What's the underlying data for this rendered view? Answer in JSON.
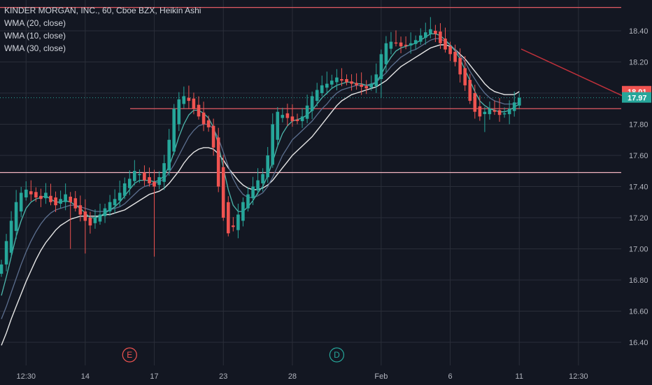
{
  "legend": {
    "symbol_line": "KINDER MORGAN, INC., 60, Cboe BZX, Heikin Ashi",
    "wma20": "WMA (20, close)",
    "wma10": "WMA (10, close)",
    "wma30": "WMA (30, close)"
  },
  "colors": {
    "background": "#131722",
    "grid": "#2a2e39",
    "up": "#26a69a",
    "down": "#ef5350",
    "wma10": "#4db6ac",
    "wma20": "#5c6f8f",
    "wma30": "#e6e6e6",
    "hline_red": "#e05a63",
    "hline_pink": "#f4b6c2",
    "trend": "#c0313b"
  },
  "chart_data": {
    "type": "candlestick",
    "title": "KINDER MORGAN, INC., 60, Cboe BZX, Heikin Ashi",
    "price_axis": {
      "min": 16.3,
      "max": 18.55,
      "ticks": [
        "18.40",
        "18.20",
        "18.00",
        "17.80",
        "17.60",
        "17.40",
        "17.20",
        "17.00",
        "16.80",
        "16.60",
        "16.40"
      ]
    },
    "time_axis": {
      "ticks": [
        {
          "label": "12:30",
          "index": 5
        },
        {
          "label": "14",
          "index": 17
        },
        {
          "label": "17",
          "index": 31
        },
        {
          "label": "23",
          "index": 45
        },
        {
          "label": "28",
          "index": 59
        },
        {
          "label": "Feb",
          "index": 77
        },
        {
          "label": "6",
          "index": 91
        },
        {
          "label": "11",
          "index": 105
        },
        {
          "label": "12:30",
          "index": 117
        }
      ],
      "total_slots": 126
    },
    "current_prices": [
      {
        "label": "18.01",
        "value": 18.01,
        "color": "#ef5350"
      },
      {
        "label": "17.97",
        "value": 17.97,
        "color": "#26a69a"
      }
    ],
    "horizontal_lines": [
      {
        "value": 18.55,
        "color": "#e05a63"
      },
      {
        "value": 17.9,
        "color": "#e05a63"
      },
      {
        "value": 17.49,
        "color": "#f4b6c2"
      }
    ],
    "events": [
      {
        "label": "E",
        "index": 26,
        "color": "#ef5350"
      },
      {
        "label": "D",
        "index": 68,
        "color": "#26a69a"
      }
    ],
    "close": [
      16.9,
      17.05,
      17.18,
      17.3,
      17.36,
      17.38,
      17.35,
      17.33,
      17.32,
      17.36,
      17.3,
      17.28,
      17.32,
      17.35,
      17.3,
      17.26,
      17.22,
      17.18,
      17.15,
      17.2,
      17.22,
      17.26,
      17.3,
      17.32,
      17.36,
      17.42,
      17.45,
      17.5,
      17.48,
      17.44,
      17.42,
      17.4,
      17.46,
      17.55,
      17.7,
      17.9,
      17.96,
      17.98,
      17.95,
      17.9,
      17.85,
      17.8,
      17.78,
      17.65,
      17.4,
      17.2,
      17.1,
      17.14,
      17.22,
      17.3,
      17.35,
      17.4,
      17.44,
      17.48,
      17.6,
      17.8,
      17.88,
      17.86,
      17.84,
      17.82,
      17.82,
      17.85,
      17.92,
      17.98,
      18.02,
      18.05,
      18.06,
      18.08,
      18.1,
      18.08,
      18.07,
      18.06,
      18.05,
      18.04,
      18.03,
      18.06,
      18.12,
      18.25,
      18.32,
      18.33,
      18.32,
      18.3,
      18.31,
      18.32,
      18.34,
      18.37,
      18.39,
      18.41,
      18.38,
      18.32,
      18.28,
      18.25,
      18.2,
      18.12,
      18.05,
      17.95,
      17.88,
      17.85,
      17.88,
      17.9,
      17.88,
      17.86,
      17.87,
      17.9,
      17.94,
      17.97
    ],
    "wma10": [
      16.7,
      16.82,
      16.95,
      17.08,
      17.18,
      17.26,
      17.3,
      17.32,
      17.33,
      17.34,
      17.32,
      17.3,
      17.3,
      17.31,
      17.3,
      17.28,
      17.26,
      17.23,
      17.2,
      17.2,
      17.21,
      17.23,
      17.25,
      17.27,
      17.3,
      17.34,
      17.38,
      17.42,
      17.44,
      17.44,
      17.44,
      17.43,
      17.44,
      17.47,
      17.53,
      17.62,
      17.72,
      17.8,
      17.86,
      17.89,
      17.89,
      17.87,
      17.84,
      17.78,
      17.67,
      17.52,
      17.38,
      17.28,
      17.24,
      17.24,
      17.27,
      17.31,
      17.36,
      17.4,
      17.47,
      17.56,
      17.66,
      17.74,
      17.79,
      17.82,
      17.83,
      17.84,
      17.86,
      17.89,
      17.93,
      17.97,
      18.0,
      18.03,
      18.05,
      18.06,
      18.07,
      18.07,
      18.06,
      18.06,
      18.05,
      18.05,
      18.07,
      18.12,
      18.18,
      18.23,
      18.27,
      18.29,
      18.3,
      18.31,
      18.32,
      18.34,
      18.36,
      18.38,
      18.38,
      18.37,
      18.34,
      18.31,
      18.27,
      18.22,
      18.15,
      18.08,
      18.01,
      17.95,
      17.92,
      17.9,
      17.89,
      17.88,
      17.88,
      17.89,
      17.91,
      17.93
    ],
    "wma20": [
      16.55,
      16.63,
      16.72,
      16.81,
      16.9,
      16.98,
      17.05,
      17.11,
      17.16,
      17.2,
      17.23,
      17.25,
      17.26,
      17.27,
      17.28,
      17.28,
      17.27,
      17.26,
      17.25,
      17.24,
      17.24,
      17.24,
      17.25,
      17.26,
      17.27,
      17.29,
      17.32,
      17.35,
      17.38,
      17.4,
      17.41,
      17.42,
      17.43,
      17.45,
      17.49,
      17.54,
      17.6,
      17.66,
      17.72,
      17.76,
      17.79,
      17.8,
      17.8,
      17.77,
      17.71,
      17.62,
      17.53,
      17.45,
      17.39,
      17.35,
      17.33,
      17.33,
      17.34,
      17.36,
      17.4,
      17.46,
      17.53,
      17.6,
      17.65,
      17.7,
      17.73,
      17.76,
      17.79,
      17.82,
      17.86,
      17.9,
      17.93,
      17.97,
      18.0,
      18.02,
      18.03,
      18.04,
      18.05,
      18.05,
      18.05,
      18.06,
      18.07,
      18.1,
      18.13,
      18.17,
      18.2,
      18.23,
      18.25,
      18.27,
      18.28,
      18.3,
      18.32,
      18.34,
      18.35,
      18.35,
      18.33,
      18.31,
      18.28,
      18.24,
      18.2,
      18.14,
      18.09,
      18.04,
      18.0,
      17.97,
      17.95,
      17.94,
      17.93,
      17.93,
      17.93,
      17.94
    ],
    "wma30": [
      16.38,
      16.46,
      16.55,
      16.63,
      16.71,
      16.79,
      16.86,
      16.93,
      16.99,
      17.04,
      17.08,
      17.12,
      17.15,
      17.17,
      17.19,
      17.2,
      17.21,
      17.21,
      17.21,
      17.21,
      17.21,
      17.22,
      17.22,
      17.23,
      17.24,
      17.25,
      17.27,
      17.29,
      17.31,
      17.33,
      17.35,
      17.36,
      17.37,
      17.39,
      17.42,
      17.46,
      17.5,
      17.55,
      17.59,
      17.62,
      17.64,
      17.65,
      17.65,
      17.64,
      17.61,
      17.57,
      17.52,
      17.48,
      17.44,
      17.41,
      17.39,
      17.38,
      17.38,
      17.39,
      17.41,
      17.44,
      17.48,
      17.52,
      17.56,
      17.6,
      17.63,
      17.66,
      17.69,
      17.72,
      17.76,
      17.8,
      17.84,
      17.88,
      17.92,
      17.95,
      17.97,
      17.99,
      18.0,
      18.01,
      18.02,
      18.03,
      18.04,
      18.06,
      18.08,
      18.11,
      18.14,
      18.17,
      18.19,
      18.21,
      18.23,
      18.25,
      18.27,
      18.29,
      18.3,
      18.31,
      18.31,
      18.3,
      18.28,
      18.25,
      18.22,
      18.18,
      18.14,
      18.1,
      18.06,
      18.03,
      18.01,
      18.0,
      17.99,
      17.99,
      17.99,
      18.01
    ]
  }
}
